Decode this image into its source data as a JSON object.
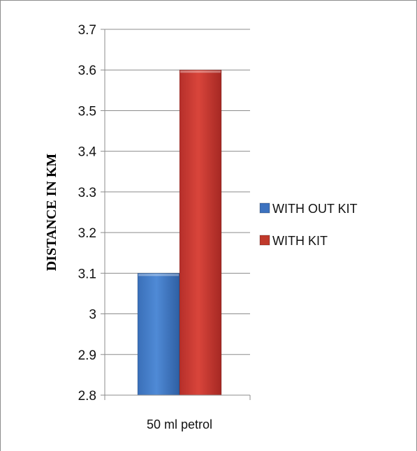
{
  "chart_data": {
    "type": "bar",
    "categories": [
      "50 ml petrol"
    ],
    "series": [
      {
        "name": "WITH OUT KIT",
        "values": [
          3.1
        ],
        "color": "#3d72bf"
      },
      {
        "name": "WITH KIT",
        "values": [
          3.6
        ],
        "color": "#c0392b"
      }
    ],
    "ylabel": "DISTANCE IN KM",
    "ylim": [
      2.8,
      3.7
    ],
    "yticks": [
      "2.8",
      "2.9",
      "3",
      "3.1",
      "3.2",
      "3.3",
      "3.4",
      "3.5",
      "3.6",
      "3.7"
    ],
    "grid": true,
    "legend_position": "right"
  }
}
